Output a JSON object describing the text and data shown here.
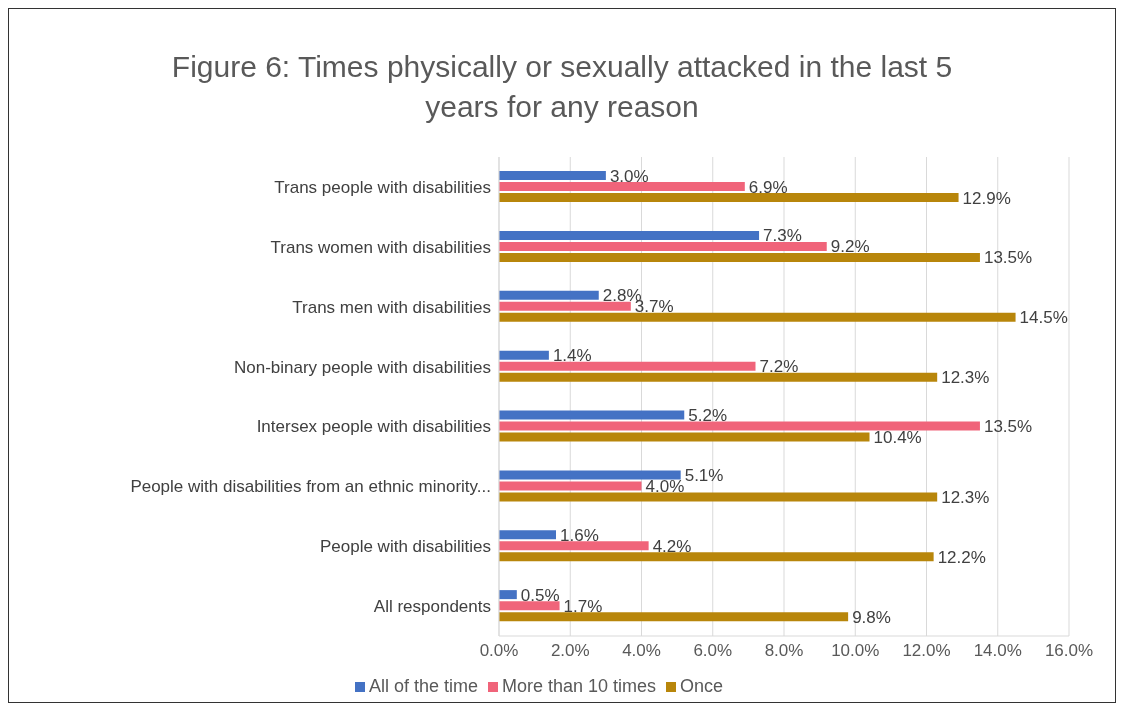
{
  "chart_data": {
    "type": "bar",
    "orientation": "horizontal",
    "title": "Figure 6: Times physically or sexually attacked in the last 5 years for any reason",
    "categories": [
      "Trans people with disabilities",
      "Trans women with disabilities",
      "Trans men with disabilities",
      "Non-binary people with disabilities",
      "Intersex people with disabilities",
      "People with disabilities from an ethnic minority...",
      "People with disabilities",
      "All respondents"
    ],
    "series": [
      {
        "name": "All of the time",
        "color": "#4472c4",
        "values": [
          3.0,
          7.3,
          2.8,
          1.4,
          5.2,
          5.1,
          1.6,
          0.5
        ],
        "value_labels": [
          "3.0%",
          "7.3%",
          "2.8%",
          "1.4%",
          "5.2%",
          "5.1%",
          "1.6%",
          "0.5%"
        ]
      },
      {
        "name": "More than 10 times",
        "color": "#f0647a",
        "values": [
          6.9,
          9.2,
          3.7,
          7.2,
          13.5,
          4.0,
          4.2,
          1.7
        ],
        "value_labels": [
          "6.9%",
          "9.2%",
          "3.7%",
          "7.2%",
          "13.5%",
          "4.0%",
          "4.2%",
          "1.7%"
        ]
      },
      {
        "name": "Once",
        "color": "#b8860b",
        "values": [
          12.9,
          13.5,
          14.5,
          12.3,
          10.4,
          12.3,
          12.2,
          9.8
        ],
        "value_labels": [
          "12.9%",
          "13.5%",
          "14.5%",
          "12.3%",
          "10.4%",
          "12.3%",
          "12.2%",
          "9.8%"
        ]
      }
    ],
    "xlim": [
      0,
      16
    ],
    "xticks": [
      {
        "value": 0,
        "label": "0.0%"
      },
      {
        "value": 2,
        "label": "2.0%"
      },
      {
        "value": 4,
        "label": "4.0%"
      },
      {
        "value": 6,
        "label": "6.0%"
      },
      {
        "value": 8,
        "label": "8.0%"
      },
      {
        "value": 10,
        "label": "10.0%"
      },
      {
        "value": 12,
        "label": "12.0%"
      },
      {
        "value": 14,
        "label": "14.0%"
      },
      {
        "value": 16,
        "label": "16.0%"
      }
    ],
    "grid": "x",
    "legend": "bottom"
  }
}
